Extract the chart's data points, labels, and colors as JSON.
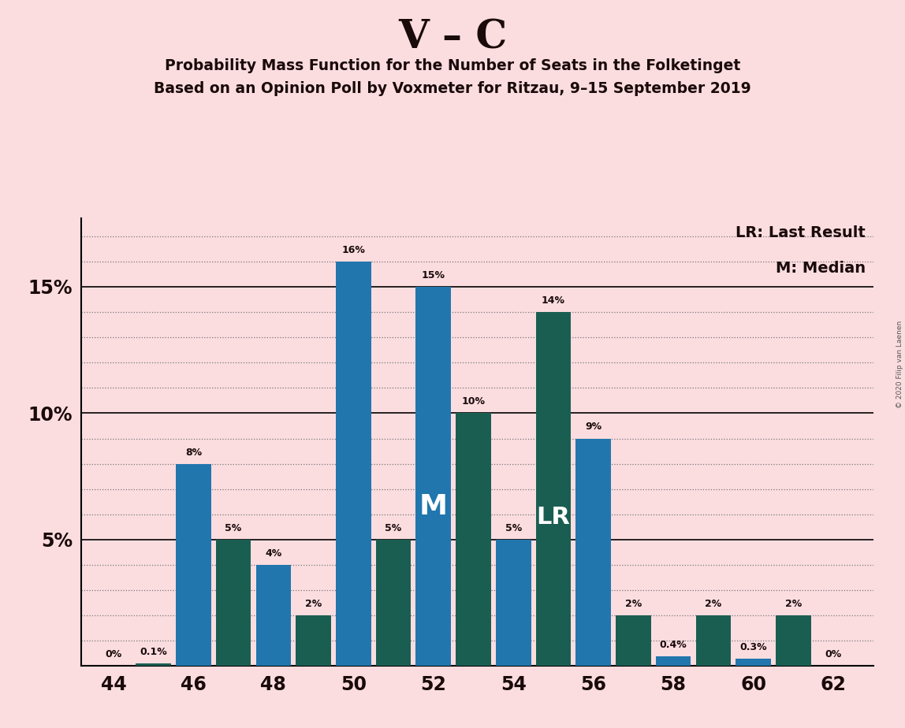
{
  "title": "V – C",
  "subtitle1": "Probability Mass Function for the Number of Seats in the Folketinget",
  "subtitle2": "Based on an Opinion Poll by Voxmeter for Ritzau, 9–15 September 2019",
  "copyright": "© 2020 Filip van Laenen",
  "background_color": "#FBDDE0",
  "bar_color_blue": "#2176AE",
  "bar_color_teal": "#1A5E52",
  "seats": [
    44,
    45,
    46,
    47,
    48,
    49,
    50,
    51,
    52,
    53,
    54,
    55,
    56,
    57,
    58,
    59,
    60,
    61,
    62
  ],
  "values": [
    0.0,
    0.001,
    0.08,
    0.05,
    0.04,
    0.02,
    0.16,
    0.05,
    0.15,
    0.1,
    0.05,
    0.14,
    0.09,
    0.02,
    0.004,
    0.02,
    0.003,
    0.02,
    0.0
  ],
  "colors": [
    "blue",
    "teal",
    "blue",
    "teal",
    "blue",
    "teal",
    "blue",
    "teal",
    "blue",
    "teal",
    "blue",
    "teal",
    "blue",
    "teal",
    "blue",
    "teal",
    "blue",
    "teal",
    "blue"
  ],
  "labels": [
    "0%",
    "0.1%",
    "8%",
    "5%",
    "4%",
    "2%",
    "16%",
    "5%",
    "15%",
    "10%",
    "5%",
    "14%",
    "9%",
    "2%",
    "0.4%",
    "2%",
    "0.3%",
    "2%",
    "0%"
  ],
  "median_seat": 52,
  "lr_seat": 55,
  "xtick_seats": [
    44,
    46,
    48,
    50,
    52,
    54,
    56,
    58,
    60,
    62
  ],
  "ylim": [
    0,
    0.177
  ],
  "legend_lr": "LR: Last Result",
  "legend_m": "M: Median",
  "title_color": "#1a0a0a",
  "subtitle_color": "#1a0a0a"
}
